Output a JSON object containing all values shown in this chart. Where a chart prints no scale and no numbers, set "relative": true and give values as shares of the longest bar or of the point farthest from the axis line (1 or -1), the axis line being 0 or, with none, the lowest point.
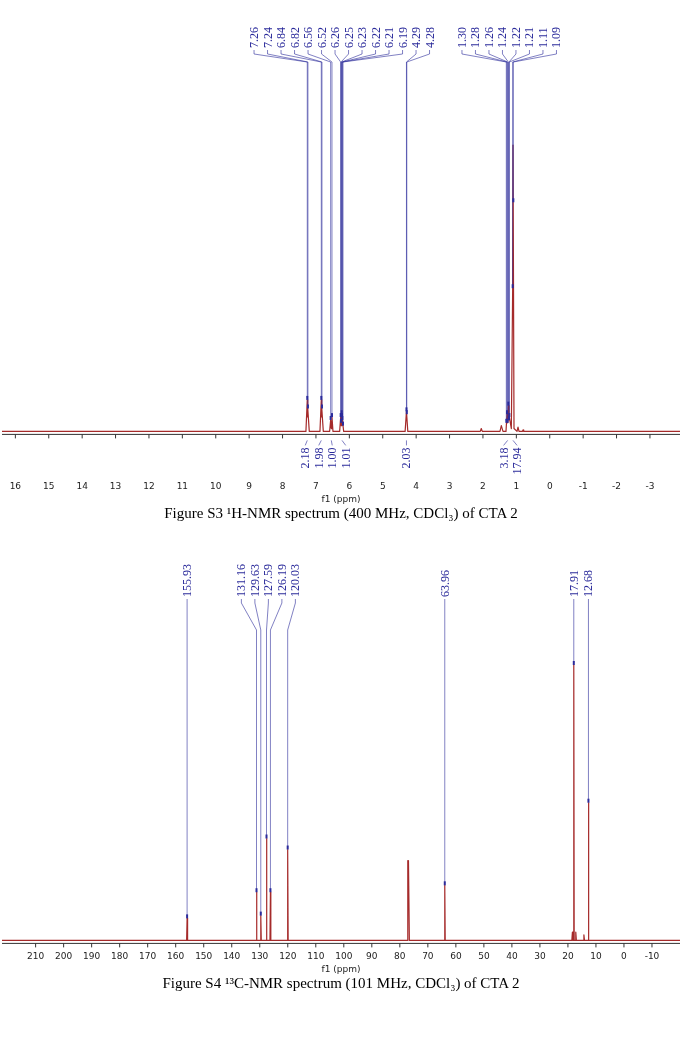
{
  "chart_data": [
    {
      "type": "line",
      "title": "Figure S3 ¹H-NMR spectrum (400 MHz, CDCl₃) of CTA 2",
      "xlabel": "f1 (ppm)",
      "relative": true,
      "xlim": [
        16.4,
        -3.9
      ],
      "xticks": [
        16,
        15,
        14,
        13,
        12,
        11,
        10,
        9,
        8,
        7,
        6,
        5,
        4,
        3,
        2,
        1,
        0,
        -1,
        -2,
        -3
      ],
      "series": [
        {
          "color": "#a52a2a",
          "x": [
            16.4,
            7.3,
            7.26,
            7.25,
            7.24,
            7.2,
            6.88,
            6.84,
            6.83,
            6.82,
            6.78,
            6.59,
            6.56,
            6.54,
            6.52,
            6.49,
            6.29,
            6.26,
            6.24,
            6.23,
            6.21,
            6.17,
            4.33,
            4.29,
            4.25,
            2.08,
            2.05,
            2.02,
            1.49,
            1.45,
            1.4,
            1.31,
            1.28,
            1.26,
            1.24,
            1.22,
            1.21,
            1.15,
            1.11,
            1.1,
            1.07,
            0.98,
            0.95,
            0.92,
            0.82,
            0.8,
            0.78,
            -3.9
          ],
          "values": [
            0,
            0,
            0.11,
            0.05,
            0.08,
            0,
            0,
            0.11,
            0.05,
            0.08,
            0,
            0,
            0.04,
            0.01,
            0.05,
            0,
            0,
            0.05,
            0.02,
            0.06,
            0.04,
            0,
            0,
            0.07,
            0,
            0,
            0.01,
            0,
            0,
            0.02,
            0,
            0,
            0.06,
            0.03,
            0.09,
            0.04,
            0.05,
            0.01,
            0.5,
            1,
            0.01,
            0,
            0.015,
            0,
            0,
            0.005,
            0,
            0
          ]
        }
      ],
      "annotations": [
        {
          "text": "7.26",
          "x": 7.26,
          "y": 0.11
        },
        {
          "text": "7.24",
          "x": 7.24,
          "y": 0.08
        },
        {
          "text": "6.84",
          "x": 6.84,
          "y": 0.11
        },
        {
          "text": "6.82",
          "x": 6.82,
          "y": 0.08
        },
        {
          "text": "6.56",
          "x": 6.56,
          "y": 0.04
        },
        {
          "text": "6.52",
          "x": 6.52,
          "y": 0.05
        },
        {
          "text": "6.26",
          "x": 6.26,
          "y": 0.05
        },
        {
          "text": "6.25",
          "x": 6.25,
          "y": 0.03
        },
        {
          "text": "6.23",
          "x": 6.23,
          "y": 0.06
        },
        {
          "text": "6.22",
          "x": 6.22,
          "y": 0.05
        },
        {
          "text": "6.21",
          "x": 6.21,
          "y": 0.04
        },
        {
          "text": "6.19",
          "x": 6.19,
          "y": 0.02
        },
        {
          "text": "4.29",
          "x": 4.29,
          "y": 0.07
        },
        {
          "text": "4.28",
          "x": 4.28,
          "y": 0.06
        },
        {
          "text": "1.30",
          "x": 1.3,
          "y": 0.03
        },
        {
          "text": "1.28",
          "x": 1.28,
          "y": 0.06
        },
        {
          "text": "1.26",
          "x": 1.26,
          "y": 0.03
        },
        {
          "text": "1.24",
          "x": 1.24,
          "y": 0.09
        },
        {
          "text": "1.22",
          "x": 1.22,
          "y": 0.04
        },
        {
          "text": "1.21",
          "x": 1.21,
          "y": 0.05
        },
        {
          "text": "1.11",
          "x": 1.11,
          "y": 0.5
        },
        {
          "text": "1.09",
          "x": 1.09,
          "y": 0.8
        },
        {
          "text": "2.18",
          "x": 7.26,
          "y": 0
        },
        {
          "text": "1.98",
          "x": 6.84,
          "y": 0
        },
        {
          "text": "1.00",
          "x": 6.54,
          "y": 0
        },
        {
          "text": "1.01",
          "x": 6.22,
          "y": 0
        },
        {
          "text": "2.03",
          "x": 4.29,
          "y": 0
        },
        {
          "text": "3.18",
          "x": 1.26,
          "y": 0
        },
        {
          "text": "17.94",
          "x": 1.1,
          "y": 0
        }
      ]
    },
    {
      "type": "line",
      "title": "Figure S4 ¹³C-NMR spectrum (101 MHz, CDCl₃) of CTA 2",
      "xlabel": "f1 (ppm)",
      "relative": true,
      "xlim": [
        222,
        -20
      ],
      "xticks": [
        210,
        200,
        190,
        180,
        170,
        160,
        150,
        140,
        130,
        120,
        110,
        100,
        90,
        80,
        70,
        60,
        50,
        40,
        30,
        20,
        10,
        0,
        -10
      ],
      "series": [
        {
          "color": "#a52a2a",
          "x": [
            222,
            156.1,
            155.93,
            155.76,
            131.3,
            131.16,
            131.0,
            129.8,
            129.63,
            129.46,
            127.75,
            127.59,
            127.45,
            126.35,
            126.19,
            126.05,
            120.2,
            120.03,
            119.86,
            77.4,
            77.16,
            77.08,
            77.0,
            76.92,
            76.84,
            76.6,
            64.1,
            63.96,
            63.8,
            18.6,
            18.4,
            18.2,
            18.05,
            17.91,
            17.77,
            17.4,
            17.2,
            17.0,
            14.5,
            14.3,
            14.1,
            12.82,
            12.68,
            12.54,
            -20
          ],
          "values": [
            0,
            0,
            0.08,
            0,
            0,
            0.175,
            0,
            0,
            0.09,
            0,
            0,
            0.37,
            0,
            0,
            0.175,
            0,
            0,
            0.33,
            0,
            0,
            0.29,
            0.2,
            0.29,
            0.2,
            0.29,
            0,
            0,
            0.2,
            0,
            0,
            0.03,
            0,
            0,
            1,
            0,
            0,
            0.03,
            0,
            0,
            0.02,
            0,
            0,
            0.5,
            0,
            0
          ]
        }
      ],
      "annotations": [
        {
          "text": "155.93",
          "x": 155.93,
          "y": 0.08
        },
        {
          "text": "131.16",
          "x": 131.16,
          "y": 0.175
        },
        {
          "text": "129.63",
          "x": 129.63,
          "y": 0.09
        },
        {
          "text": "127.59",
          "x": 127.59,
          "y": 0.37
        },
        {
          "text": "126.19",
          "x": 126.19,
          "y": 0.175
        },
        {
          "text": "120.03",
          "x": 120.03,
          "y": 0.33
        },
        {
          "text": "63.96",
          "x": 63.96,
          "y": 0.2
        },
        {
          "text": "17.91",
          "x": 17.91,
          "y": 1
        },
        {
          "text": "12.68",
          "x": 12.68,
          "y": 0.5
        }
      ]
    }
  ]
}
